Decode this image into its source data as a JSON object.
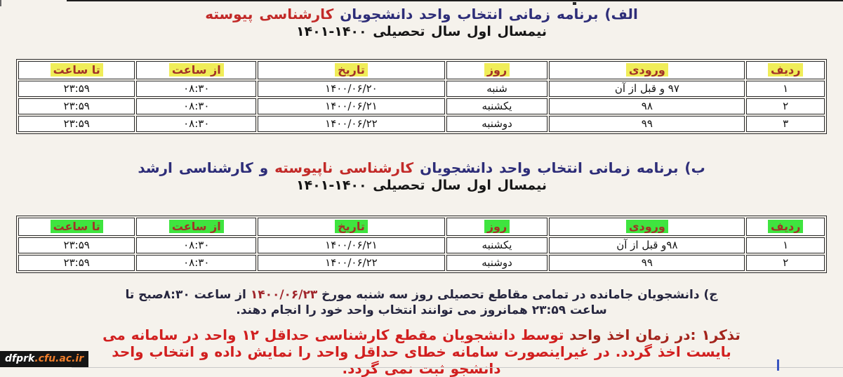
{
  "colors": {
    "title_navy": "#2d2d78",
    "accent_red": "#c22a28",
    "header_text": "#a23228",
    "hl_yellow": "#f0ed58",
    "hl_green": "#3fe43f",
    "note_dark": "#26263f",
    "warning_red": "#d11f1f",
    "warning_dark": "#a3241c",
    "badge_orange": "#ef7d2a",
    "page_bg": "#f5f2ec"
  },
  "section_a": {
    "title_prefix": "الف) برنامه زمانی انتخاب واحد دانشجویان ",
    "title_highlight": "کارشناسی پیوسته",
    "subtitle": "نیمسال اول سال تحصیلی ۱۴۰۰-۱۴۰۱"
  },
  "section_b": {
    "title_prefix": "ب) برنامه زمانی انتخاب واحد دانشجویان ",
    "title_highlight": "کارشناسی ناپیوسته",
    "title_suffix": " و کارشناسی ارشد",
    "subtitle": "نیمسال اول سال تحصیلی ۱۴۰۰-۱۴۰۱"
  },
  "table_a": {
    "headers": [
      "ردیف",
      "ورودی",
      "روز",
      "تاریخ",
      "از ساعت",
      "تا ساعت"
    ],
    "rows": [
      [
        "۱",
        "۹۷ و قبل از آن",
        "شنبه",
        "۱۴۰۰/۰۶/۲۰",
        "۰۸:۳۰",
        "۲۳:۵۹"
      ],
      [
        "۲",
        "۹۸",
        "یکشنبه",
        "۱۴۰۰/۰۶/۲۱",
        "۰۸:۳۰",
        "۲۳:۵۹"
      ],
      [
        "۳",
        "۹۹",
        "دوشنبه",
        "۱۴۰۰/۰۶/۲۲",
        "۰۸:۳۰",
        "۲۳:۵۹"
      ]
    ]
  },
  "table_b": {
    "headers": [
      "ردیف",
      "ورودی",
      "روز",
      "تاریخ",
      "از ساعت",
      "تا ساعت"
    ],
    "rows": [
      [
        "۱",
        "۹۸و قبل از آن",
        "یکشنبه",
        "۱۴۰۰/۰۶/۲۱",
        "۰۸:۳۰",
        "۲۳:۵۹"
      ],
      [
        "۲",
        "۹۹",
        "دوشنبه",
        "۱۴۰۰/۰۶/۲۲",
        "۰۸:۳۰",
        "۲۳:۵۹"
      ]
    ]
  },
  "note": {
    "line1_prefix": "ج) دانشجویان جامانده در تمامی مقاطع تحصیلی روز سه شنبه مورخ ",
    "line1_date": "۱۴۰۰/۰۶/۲۳",
    "line1_suffix": " از ساعت ۸:۳۰صبح تا",
    "line2": "ساعت ۲۳:۵۹ همانروز می توانند انتخاب واحد خود را انجام دهند."
  },
  "warning": {
    "line1_dark": "تذکر۱ :در زمان اخذ واحد ",
    "line1_bright": "توسط دانشجویان مقطع کارشناسی حداقل ۱۲ واحد در سامانه می",
    "line2": "بایست اخذ گردد. در غیراینصورت سامانه خطای حداقل واحد را نمایش داده و انتخاب واحد",
    "line3": "دانشجو ثبت نمی گردد."
  },
  "watermark": {
    "site_prefix": "dfprk",
    "site_suffix": ".cfu.ac.ir"
  }
}
